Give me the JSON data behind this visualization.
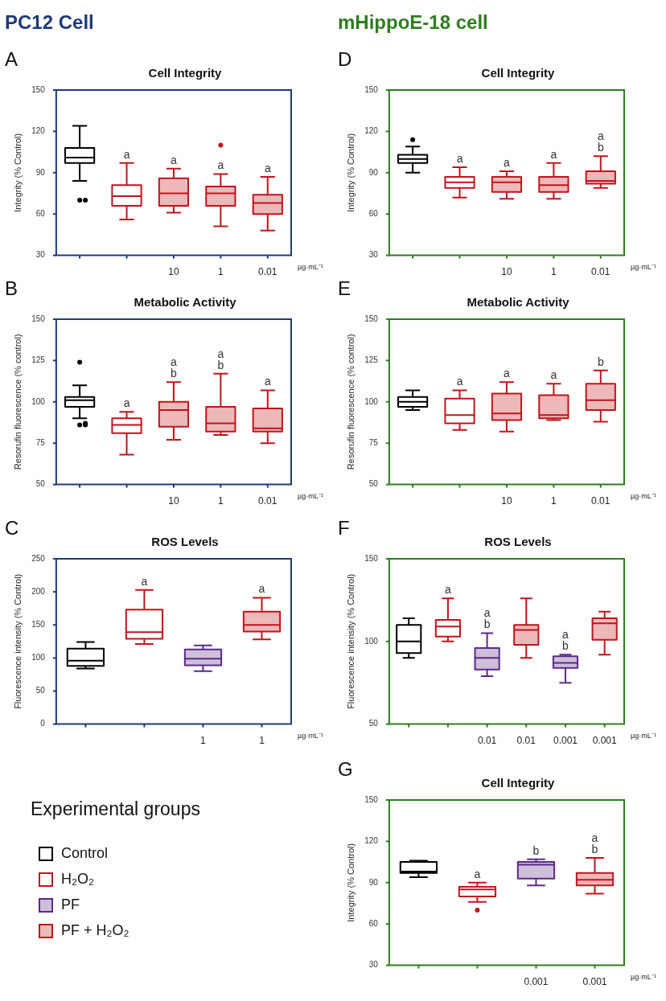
{
  "chart_data": [
    {
      "type": "box",
      "title": "Cell Integrity",
      "ylabel": "Integrity (% Control)",
      "xlabel": "µg·mL⁻¹",
      "annotations": [
        "A",
        "PC12 Cell"
      ],
      "categories": [
        null,
        null,
        "10",
        "1",
        "0.01"
      ],
      "ylim": [
        30,
        150
      ],
      "yticks": [
        30,
        60,
        90,
        120,
        150
      ],
      "series": [
        {
          "color": "#000000",
          "boxes": [
            {
              "low": 84,
              "q1": 97,
              "median": 101,
              "q3": 108,
              "high": 124,
              "outliers": [
                70,
                70
              ]
            },
            null,
            null,
            null,
            null
          ]
        },
        {
          "color": "#c0141c",
          "boxes": [
            null,
            {
              "low": 56,
              "q1": 66,
              "median": 73,
              "q3": 81,
              "high": 97
            },
            null,
            null,
            null
          ],
          "value_labels": [
            null,
            "a",
            null,
            null,
            null
          ]
        },
        {
          "color": "#c0141c",
          "boxes": [
            null,
            null,
            {
              "low": 61,
              "q1": 66,
              "median": 75,
              "q3": 86,
              "high": 93
            },
            {
              "low": 51,
              "q1": 66,
              "median": 75,
              "q3": 80,
              "high": 89,
              "outliers": [
                110
              ]
            },
            {
              "low": 48,
              "q1": 60,
              "median": 68,
              "q3": 74,
              "high": 87
            }
          ],
          "value_labels": [
            null,
            null,
            "a",
            "a",
            "a"
          ]
        }
      ]
    },
    {
      "type": "box",
      "title": "Metabolic Activity",
      "ylabel": "Resorufin fluorescence (% control)",
      "xlabel": "µg·mL⁻¹",
      "annotations": [
        "B"
      ],
      "categories": [
        null,
        null,
        "10",
        "1",
        "0.01"
      ],
      "ylim": [
        50,
        150
      ],
      "yticks": [
        50,
        75,
        100,
        125,
        150
      ],
      "series": [
        {
          "color": "#000000",
          "boxes": [
            {
              "low": 90,
              "q1": 97,
              "median": 101,
              "q3": 103,
              "high": 110,
              "outliers": [
                124,
                87,
                86,
                86
              ]
            },
            null,
            null,
            null,
            null
          ]
        },
        {
          "color": "#c0141c",
          "boxes": [
            null,
            {
              "low": 68,
              "q1": 81,
              "median": 86,
              "q3": 90,
              "high": 94
            },
            null,
            null,
            null
          ],
          "value_labels": [
            null,
            "a",
            null,
            null,
            null
          ]
        },
        {
          "color": "#c0141c",
          "boxes": [
            null,
            null,
            {
              "low": 77,
              "q1": 85,
              "median": 95,
              "q3": 100,
              "high": 112
            },
            {
              "low": 80,
              "q1": 82,
              "median": 87,
              "q3": 97,
              "high": 117
            },
            {
              "low": 75,
              "q1": 82,
              "median": 84,
              "q3": 96,
              "high": 107
            }
          ],
          "value_labels": [
            null,
            null,
            "a\nb",
            "a\nb",
            "a"
          ]
        }
      ]
    },
    {
      "type": "box",
      "title": "ROS Levels",
      "ylabel": "Fluorescence intensity (% Control)",
      "xlabel": "µg·mL⁻¹",
      "annotations": [
        "C"
      ],
      "categories": [
        null,
        null,
        "1",
        "1"
      ],
      "ylim": [
        0,
        250
      ],
      "yticks": [
        0,
        50,
        100,
        150,
        200,
        250
      ],
      "series": [
        {
          "color": "#000000",
          "boxes": [
            {
              "low": 84,
              "q1": 88,
              "median": 96,
              "q3": 114,
              "high": 124
            },
            null,
            null,
            null
          ]
        },
        {
          "color": "#c0141c",
          "boxes": [
            null,
            {
              "low": 121,
              "q1": 129,
              "median": 139,
              "q3": 173,
              "high": 203
            },
            null,
            null
          ],
          "value_labels": [
            null,
            "a",
            null,
            null
          ]
        },
        {
          "color": "#5b2a86",
          "boxes": [
            null,
            null,
            {
              "low": 80,
              "q1": 89,
              "median": 99,
              "q3": 113,
              "high": 119
            },
            null
          ]
        },
        {
          "color": "#c0141c",
          "boxes": [
            null,
            null,
            null,
            {
              "low": 128,
              "q1": 140,
              "median": 150,
              "q3": 170,
              "high": 191
            }
          ],
          "value_labels": [
            null,
            null,
            null,
            "a"
          ]
        }
      ]
    },
    {
      "type": "box",
      "title": "Cell Integrity",
      "ylabel": "Integrity (% Control)",
      "xlabel": "µg·mL⁻¹",
      "annotations": [
        "D",
        "mHippoE-18 cell"
      ],
      "categories": [
        null,
        null,
        "10",
        "1",
        "0.01"
      ],
      "ylim": [
        30,
        150
      ],
      "yticks": [
        30,
        60,
        90,
        120,
        150
      ],
      "series": [
        {
          "color": "#000000",
          "boxes": [
            {
              "low": 90,
              "q1": 97,
              "median": 100,
              "q3": 103,
              "high": 109,
              "outliers": [
                114
              ]
            },
            null,
            null,
            null,
            null
          ]
        },
        {
          "color": "#c0141c",
          "boxes": [
            null,
            {
              "low": 72,
              "q1": 79,
              "median": 83,
              "q3": 87,
              "high": 94
            },
            null,
            null,
            null
          ],
          "value_labels": [
            null,
            "a",
            null,
            null,
            null
          ]
        },
        {
          "color": "#c0141c",
          "boxes": [
            null,
            null,
            {
              "low": 71,
              "q1": 76,
              "median": 83,
              "q3": 87,
              "high": 91
            },
            {
              "low": 71,
              "q1": 76,
              "median": 81,
              "q3": 87,
              "high": 97
            },
            {
              "low": 79,
              "q1": 82,
              "median": 84,
              "q3": 91,
              "high": 102
            }
          ],
          "value_labels": [
            null,
            null,
            "a",
            "a",
            "a\nb"
          ]
        }
      ]
    },
    {
      "type": "box",
      "title": "Metabolic Activity",
      "ylabel": "Resorufin fluorescence (% control)",
      "xlabel": "µg·mL⁻¹",
      "annotations": [
        "E"
      ],
      "categories": [
        null,
        null,
        "10",
        "1",
        "0.01"
      ],
      "ylim": [
        50,
        150
      ],
      "yticks": [
        50,
        75,
        100,
        125,
        150
      ],
      "series": [
        {
          "color": "#000000",
          "boxes": [
            {
              "low": 95,
              "q1": 97,
              "median": 100,
              "q3": 103,
              "high": 107
            },
            null,
            null,
            null,
            null
          ]
        },
        {
          "color": "#c0141c",
          "boxes": [
            null,
            {
              "low": 83,
              "q1": 87,
              "median": 92,
              "q3": 102,
              "high": 107
            },
            null,
            null,
            null
          ],
          "value_labels": [
            null,
            "a",
            null,
            null,
            null
          ]
        },
        {
          "color": "#c0141c",
          "boxes": [
            null,
            null,
            {
              "low": 82,
              "q1": 89,
              "median": 93,
              "q3": 105,
              "high": 112
            },
            {
              "low": 89,
              "q1": 90,
              "median": 92,
              "q3": 104,
              "high": 111
            },
            {
              "low": 88,
              "q1": 95,
              "median": 101,
              "q3": 111,
              "high": 119
            }
          ],
          "value_labels": [
            null,
            null,
            "a",
            "a",
            "b"
          ]
        }
      ]
    },
    {
      "type": "box",
      "title": "ROS Levels",
      "ylabel": "Fluorescence intensity (% Control)",
      "xlabel": "µg·mL⁻¹",
      "annotations": [
        "F"
      ],
      "categories": [
        null,
        null,
        "0.01",
        "0.01",
        "0.001",
        "0.001"
      ],
      "ylim": [
        50,
        150
      ],
      "yticks": [
        50,
        100,
        150
      ],
      "series": [
        {
          "color": "#000000",
          "boxes": [
            {
              "low": 90,
              "q1": 93,
              "median": 100,
              "q3": 110,
              "high": 114
            },
            null,
            null,
            null,
            null,
            null
          ]
        },
        {
          "color": "#c0141c",
          "boxes": [
            null,
            {
              "low": 100,
              "q1": 103,
              "median": 109,
              "q3": 113,
              "high": 126
            },
            null,
            null,
            null,
            null
          ],
          "value_labels": [
            null,
            "a",
            null,
            null,
            null,
            null
          ]
        },
        {
          "color": "#5b2a86",
          "boxes": [
            null,
            null,
            {
              "low": 79,
              "q1": 83,
              "median": 90,
              "q3": 96,
              "high": 105
            },
            null,
            {
              "low": 75,
              "q1": 84,
              "median": 87,
              "q3": 91,
              "high": 92
            },
            null
          ],
          "value_labels": [
            null,
            null,
            "a\nb",
            null,
            "a\nb",
            null
          ]
        },
        {
          "color": "#c0141c",
          "boxes": [
            null,
            null,
            null,
            {
              "low": 90,
              "q1": 98,
              "median": 107,
              "q3": 110,
              "high": 126
            },
            null,
            {
              "low": 92,
              "q1": 101,
              "median": 111,
              "q3": 114,
              "high": 118
            }
          ]
        }
      ]
    },
    {
      "type": "box",
      "title": "Cell Integrity",
      "ylabel": "Integrity (% Control)",
      "xlabel": "µg·mL⁻¹",
      "annotations": [
        "G"
      ],
      "categories": [
        null,
        null,
        "0.001",
        "0.001"
      ],
      "ylim": [
        30,
        150
      ],
      "yticks": [
        30,
        60,
        90,
        120,
        150
      ],
      "series": [
        {
          "color": "#000000",
          "boxes": [
            {
              "low": 94,
              "q1": 97,
              "median": 98,
              "q3": 105,
              "high": 106
            },
            null,
            null,
            null
          ]
        },
        {
          "color": "#c0141c",
          "boxes": [
            null,
            {
              "low": 76,
              "q1": 80,
              "median": 85,
              "q3": 87,
              "high": 90,
              "outliers": [
                70
              ]
            },
            null,
            null
          ],
          "value_labels": [
            null,
            "a",
            null,
            null
          ]
        },
        {
          "color": "#5b2a86",
          "boxes": [
            null,
            null,
            {
              "low": 88,
              "q1": 93,
              "median": 103,
              "q3": 105,
              "high": 107
            },
            null
          ],
          "value_labels": [
            null,
            null,
            "b",
            null
          ]
        },
        {
          "color": "#c0141c",
          "boxes": [
            null,
            null,
            null,
            {
              "low": 82,
              "q1": 88,
              "median": 92,
              "q3": 97,
              "high": 108
            }
          ],
          "value_labels": [
            null,
            null,
            null,
            "a\nb"
          ]
        }
      ]
    },
    {
      "type": "other",
      "title": "Experimental groups",
      "series": [
        {
          "name": "Control",
          "color": "#000000"
        },
        {
          "name": "H₂O₂",
          "color": "#c0141c"
        },
        {
          "name": "PF",
          "color": "#5b2a86"
        },
        {
          "name": "PF + H₂O₂",
          "color": "#c0141c"
        }
      ]
    }
  ]
}
